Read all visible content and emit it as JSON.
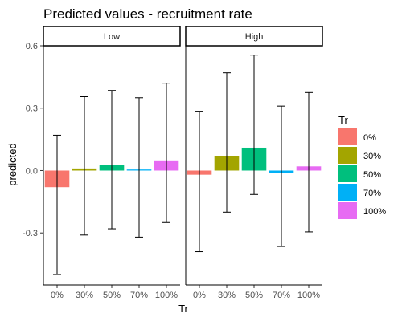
{
  "chart_data": {
    "type": "bar",
    "title": "Predicted values - recruitment rate",
    "xlabel": "Tr",
    "ylabel": "predicted",
    "ylim": [
      -0.55,
      0.6
    ],
    "yticks": [
      -0.3,
      0.0,
      0.3,
      0.6
    ],
    "ytick_labels": [
      "-0.3",
      "0.0",
      "0.3",
      "0.6"
    ],
    "grid": false,
    "legend": {
      "title": "Tr",
      "placement": "right",
      "items": [
        {
          "label": "0%",
          "color": "#F8766D"
        },
        {
          "label": "30%",
          "color": "#A3A500"
        },
        {
          "label": "50%",
          "color": "#00BF7D"
        },
        {
          "label": "70%",
          "color": "#00B0F6"
        },
        {
          "label": "100%",
          "color": "#E76BF3"
        }
      ]
    },
    "categories": [
      "0%",
      "30%",
      "50%",
      "70%",
      "100%"
    ],
    "panels": [
      {
        "label": "Low",
        "values": [
          -0.08,
          0.01,
          0.025,
          0.005,
          0.045
        ],
        "lower": [
          -0.5,
          -0.31,
          -0.28,
          -0.32,
          -0.25
        ],
        "upper": [
          0.17,
          0.355,
          0.385,
          0.35,
          0.42
        ]
      },
      {
        "label": "High",
        "values": [
          -0.02,
          0.07,
          0.11,
          -0.01,
          0.02
        ],
        "lower": [
          -0.39,
          -0.2,
          -0.115,
          -0.365,
          -0.295
        ],
        "upper": [
          0.285,
          0.47,
          0.555,
          0.31,
          0.375
        ]
      }
    ]
  }
}
